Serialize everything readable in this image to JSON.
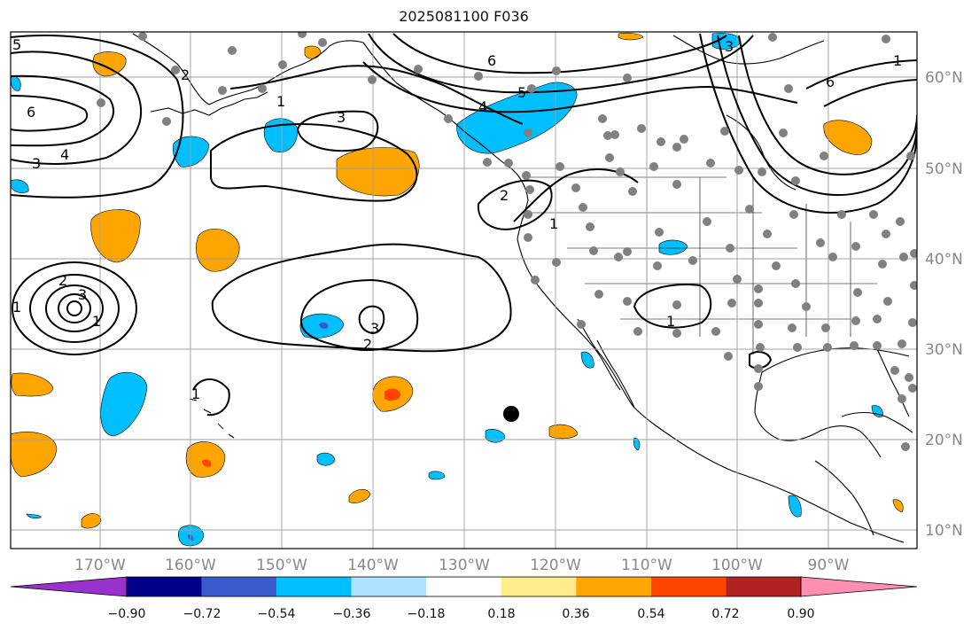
{
  "title": "2025081100 F036",
  "colors": {
    "land_outline": "#000000",
    "grid": "#a0a0a0",
    "station": "#808080",
    "marker": "#000000",
    "colorbar": [
      "#9932cc",
      "#00008b",
      "#3a5bcc",
      "#00bfff",
      "#b0e2ff",
      "#ffffff",
      "#ffec8b",
      "#ffa500",
      "#ff4500",
      "#b22222",
      "#ff8fb1"
    ]
  },
  "axes": {
    "lon_labels": [
      "170°W",
      "160°W",
      "150°W",
      "140°W",
      "130°W",
      "120°W",
      "110°W",
      "100°W",
      "90°W"
    ],
    "lat_labels": [
      "60°N",
      "50°N",
      "40°N",
      "30°N",
      "20°N",
      "10°N"
    ]
  },
  "colorbar": {
    "tick_labels": [
      "−0.90",
      "−0.72",
      "−0.54",
      "−0.36",
      "−0.18",
      "0.18",
      "0.36",
      "0.54",
      "0.72",
      "0.90"
    ]
  },
  "contour_labels": [
    "5",
    "6",
    "3",
    "4",
    "2",
    "1",
    "1",
    "3",
    "6",
    "5",
    "4",
    "3",
    "2",
    "1",
    "1",
    "2",
    "3",
    "1",
    "6",
    "3",
    "2",
    "1",
    "1"
  ]
}
